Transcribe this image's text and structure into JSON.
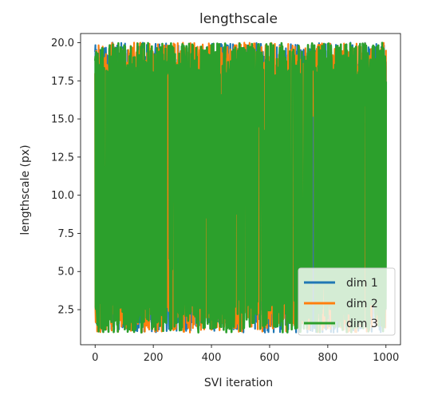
{
  "chart_data": {
    "type": "line",
    "title": "lengthscale",
    "xlabel": "SVI iteration",
    "ylabel": "lengthscale (px)",
    "xlim": [
      -50,
      1050
    ],
    "ylim": [
      0.2,
      20.6
    ],
    "xticks": [
      0,
      200,
      400,
      600,
      800,
      1000
    ],
    "yticks": [
      2.5,
      5.0,
      7.5,
      10.0,
      12.5,
      15.0,
      17.5,
      20.0
    ],
    "ytick_labels": [
      "2.5",
      "5.0",
      "7.5",
      "10.0",
      "12.5",
      "15.0",
      "17.5",
      "20.0"
    ],
    "x_range": [
      0,
      1000
    ],
    "y_band": {
      "min": 1.0,
      "max": 20.0
    },
    "legend_position": "lower right",
    "series": [
      {
        "name": "dim 1",
        "color": "#1f77b4"
      },
      {
        "name": "dim 2",
        "color": "#ff7f0e"
      },
      {
        "name": "dim 3",
        "color": "#2ca02c"
      }
    ]
  }
}
